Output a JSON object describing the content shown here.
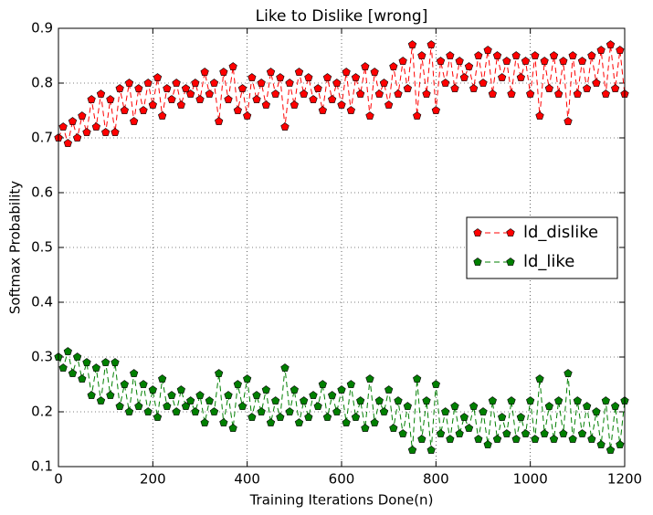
{
  "chart_data": {
    "type": "line",
    "title": "Like to Dislike [wrong]",
    "x_label": "Training Iterations Done(n)",
    "y_label": "Softmax Probability",
    "x": [
      0,
      10,
      20,
      30,
      40,
      50,
      60,
      70,
      80,
      90,
      100,
      110,
      120,
      130,
      140,
      150,
      160,
      170,
      180,
      190,
      200,
      210,
      220,
      230,
      240,
      250,
      260,
      270,
      280,
      290,
      300,
      310,
      320,
      330,
      340,
      350,
      360,
      370,
      380,
      390,
      400,
      410,
      420,
      430,
      440,
      450,
      460,
      470,
      480,
      490,
      500,
      510,
      520,
      530,
      540,
      550,
      560,
      570,
      580,
      590,
      600,
      610,
      620,
      630,
      640,
      650,
      660,
      670,
      680,
      690,
      700,
      710,
      720,
      730,
      740,
      750,
      760,
      770,
      780,
      790,
      800,
      810,
      820,
      830,
      840,
      850,
      860,
      870,
      880,
      890,
      900,
      910,
      920,
      930,
      940,
      950,
      960,
      970,
      980,
      990,
      1000,
      1010,
      1020,
      1030,
      1040,
      1050,
      1060,
      1070,
      1080,
      1090,
      1100,
      1110,
      1120,
      1130,
      1140,
      1150,
      1160,
      1170,
      1180,
      1190,
      1200
    ],
    "series": [
      {
        "name": "ld_dislike",
        "color": "#ff0000",
        "values": [
          0.7,
          0.72,
          0.69,
          0.73,
          0.7,
          0.74,
          0.71,
          0.77,
          0.72,
          0.78,
          0.71,
          0.77,
          0.71,
          0.79,
          0.75,
          0.8,
          0.73,
          0.79,
          0.75,
          0.8,
          0.76,
          0.81,
          0.74,
          0.79,
          0.77,
          0.8,
          0.76,
          0.79,
          0.78,
          0.8,
          0.77,
          0.82,
          0.78,
          0.8,
          0.73,
          0.82,
          0.77,
          0.83,
          0.75,
          0.79,
          0.74,
          0.81,
          0.77,
          0.8,
          0.76,
          0.82,
          0.78,
          0.81,
          0.72,
          0.8,
          0.76,
          0.82,
          0.78,
          0.81,
          0.77,
          0.79,
          0.75,
          0.81,
          0.77,
          0.8,
          0.76,
          0.82,
          0.75,
          0.81,
          0.78,
          0.83,
          0.74,
          0.82,
          0.78,
          0.8,
          0.76,
          0.83,
          0.78,
          0.84,
          0.79,
          0.87,
          0.74,
          0.85,
          0.78,
          0.87,
          0.75,
          0.84,
          0.8,
          0.85,
          0.79,
          0.84,
          0.81,
          0.83,
          0.79,
          0.85,
          0.8,
          0.86,
          0.78,
          0.85,
          0.81,
          0.84,
          0.78,
          0.85,
          0.81,
          0.84,
          0.78,
          0.85,
          0.74,
          0.84,
          0.79,
          0.85,
          0.78,
          0.84,
          0.73,
          0.85,
          0.78,
          0.84,
          0.79,
          0.85,
          0.8,
          0.86,
          0.78,
          0.87,
          0.79,
          0.86,
          0.78
        ]
      },
      {
        "name": "ld_like",
        "color": "#007f00",
        "values": [
          0.3,
          0.28,
          0.31,
          0.27,
          0.3,
          0.26,
          0.29,
          0.23,
          0.28,
          0.22,
          0.29,
          0.23,
          0.29,
          0.21,
          0.25,
          0.2,
          0.27,
          0.21,
          0.25,
          0.2,
          0.24,
          0.19,
          0.26,
          0.21,
          0.23,
          0.2,
          0.24,
          0.21,
          0.22,
          0.2,
          0.23,
          0.18,
          0.22,
          0.2,
          0.27,
          0.18,
          0.23,
          0.17,
          0.25,
          0.21,
          0.26,
          0.19,
          0.23,
          0.2,
          0.24,
          0.18,
          0.22,
          0.19,
          0.28,
          0.2,
          0.24,
          0.18,
          0.22,
          0.19,
          0.23,
          0.21,
          0.25,
          0.19,
          0.23,
          0.2,
          0.24,
          0.18,
          0.25,
          0.19,
          0.22,
          0.17,
          0.26,
          0.18,
          0.22,
          0.2,
          0.24,
          0.17,
          0.22,
          0.16,
          0.21,
          0.13,
          0.26,
          0.15,
          0.22,
          0.13,
          0.25,
          0.16,
          0.2,
          0.15,
          0.21,
          0.16,
          0.19,
          0.17,
          0.21,
          0.15,
          0.2,
          0.14,
          0.22,
          0.15,
          0.19,
          0.16,
          0.22,
          0.15,
          0.19,
          0.16,
          0.22,
          0.15,
          0.26,
          0.16,
          0.21,
          0.15,
          0.22,
          0.16,
          0.27,
          0.15,
          0.22,
          0.16,
          0.21,
          0.15,
          0.2,
          0.14,
          0.22,
          0.13,
          0.21,
          0.14,
          0.22
        ]
      }
    ],
    "xlim": [
      0,
      1200
    ],
    "xticks": [
      0,
      200,
      400,
      600,
      800,
      1000,
      1200
    ],
    "ylim": [
      0.1,
      0.9
    ],
    "yticks": [
      0.1,
      0.2,
      0.3,
      0.4,
      0.5,
      0.6,
      0.7,
      0.8,
      0.9
    ],
    "grid": true,
    "legend": "center right"
  }
}
